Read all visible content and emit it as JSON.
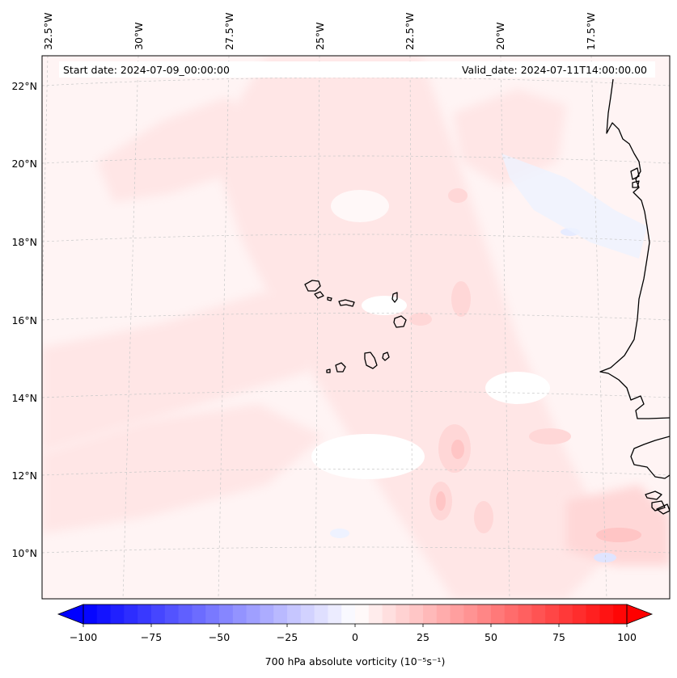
{
  "map": {
    "start_date_label": "Start date: 2024-07-09_00:00:00",
    "valid_date_label": "Valid_date: 2024-07-11T14:00:00.00",
    "lon_labels": [
      "32.5°W",
      "30°W",
      "27.5°W",
      "25°W",
      "22.5°W",
      "20°W",
      "17.5°W"
    ],
    "lat_labels": [
      "22°N",
      "20°N",
      "18°N",
      "16°N",
      "14°N",
      "12°N",
      "10°N"
    ],
    "field_colors": {
      "very_light_pink": "#fff4f4",
      "light_pink": "#ffe6e6",
      "pink": "#ffd7d7",
      "medium_pink": "#ffc5c5",
      "light_blue": "#eef2ff",
      "coast": "#000000",
      "grid": "#bfbfbf"
    }
  },
  "colorbar": {
    "label": "700 hPa absolute vorticity (10⁻⁵s⁻¹)",
    "ticks": [
      "−100",
      "−75",
      "−50",
      "−25",
      "0",
      "25",
      "50",
      "75",
      "100"
    ],
    "min": -100,
    "max": 100,
    "levels": 40,
    "low_color": "#0000ff",
    "mid_color": "#ffffff",
    "high_color": "#ff0000"
  }
}
